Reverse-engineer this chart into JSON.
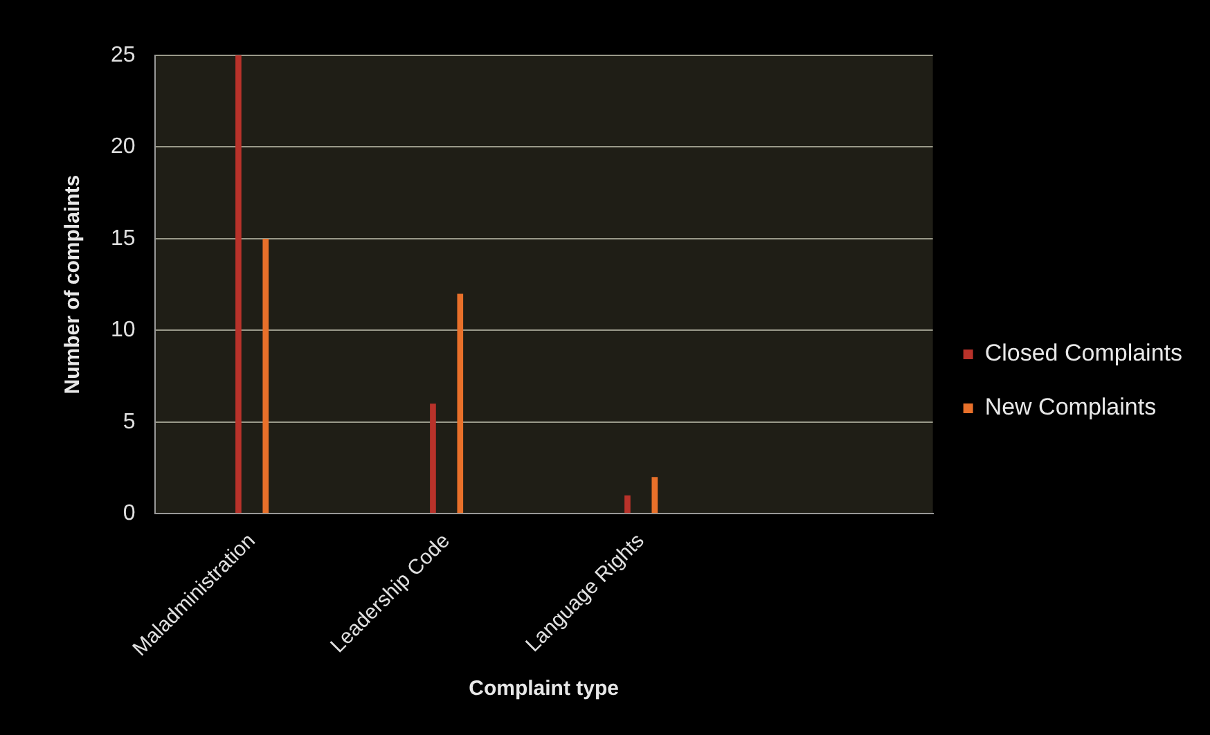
{
  "chart_data": {
    "type": "bar",
    "categories": [
      "Maladministration",
      "Leadership Code",
      "Language Rights",
      null
    ],
    "series": [
      {
        "name": "Closed Complaints",
        "color": "#b8322a",
        "values": [
          25,
          6,
          1,
          null
        ]
      },
      {
        "name": "New Complaints",
        "color": "#e8702a",
        "values": [
          15,
          12,
          2,
          null
        ]
      }
    ],
    "xlabel": "Complaint type",
    "ylabel": "Number of complaints",
    "ylim": [
      0,
      25
    ],
    "yticks": [
      0,
      5,
      10,
      15,
      20,
      25
    ],
    "grid": "y",
    "legend": "right"
  }
}
